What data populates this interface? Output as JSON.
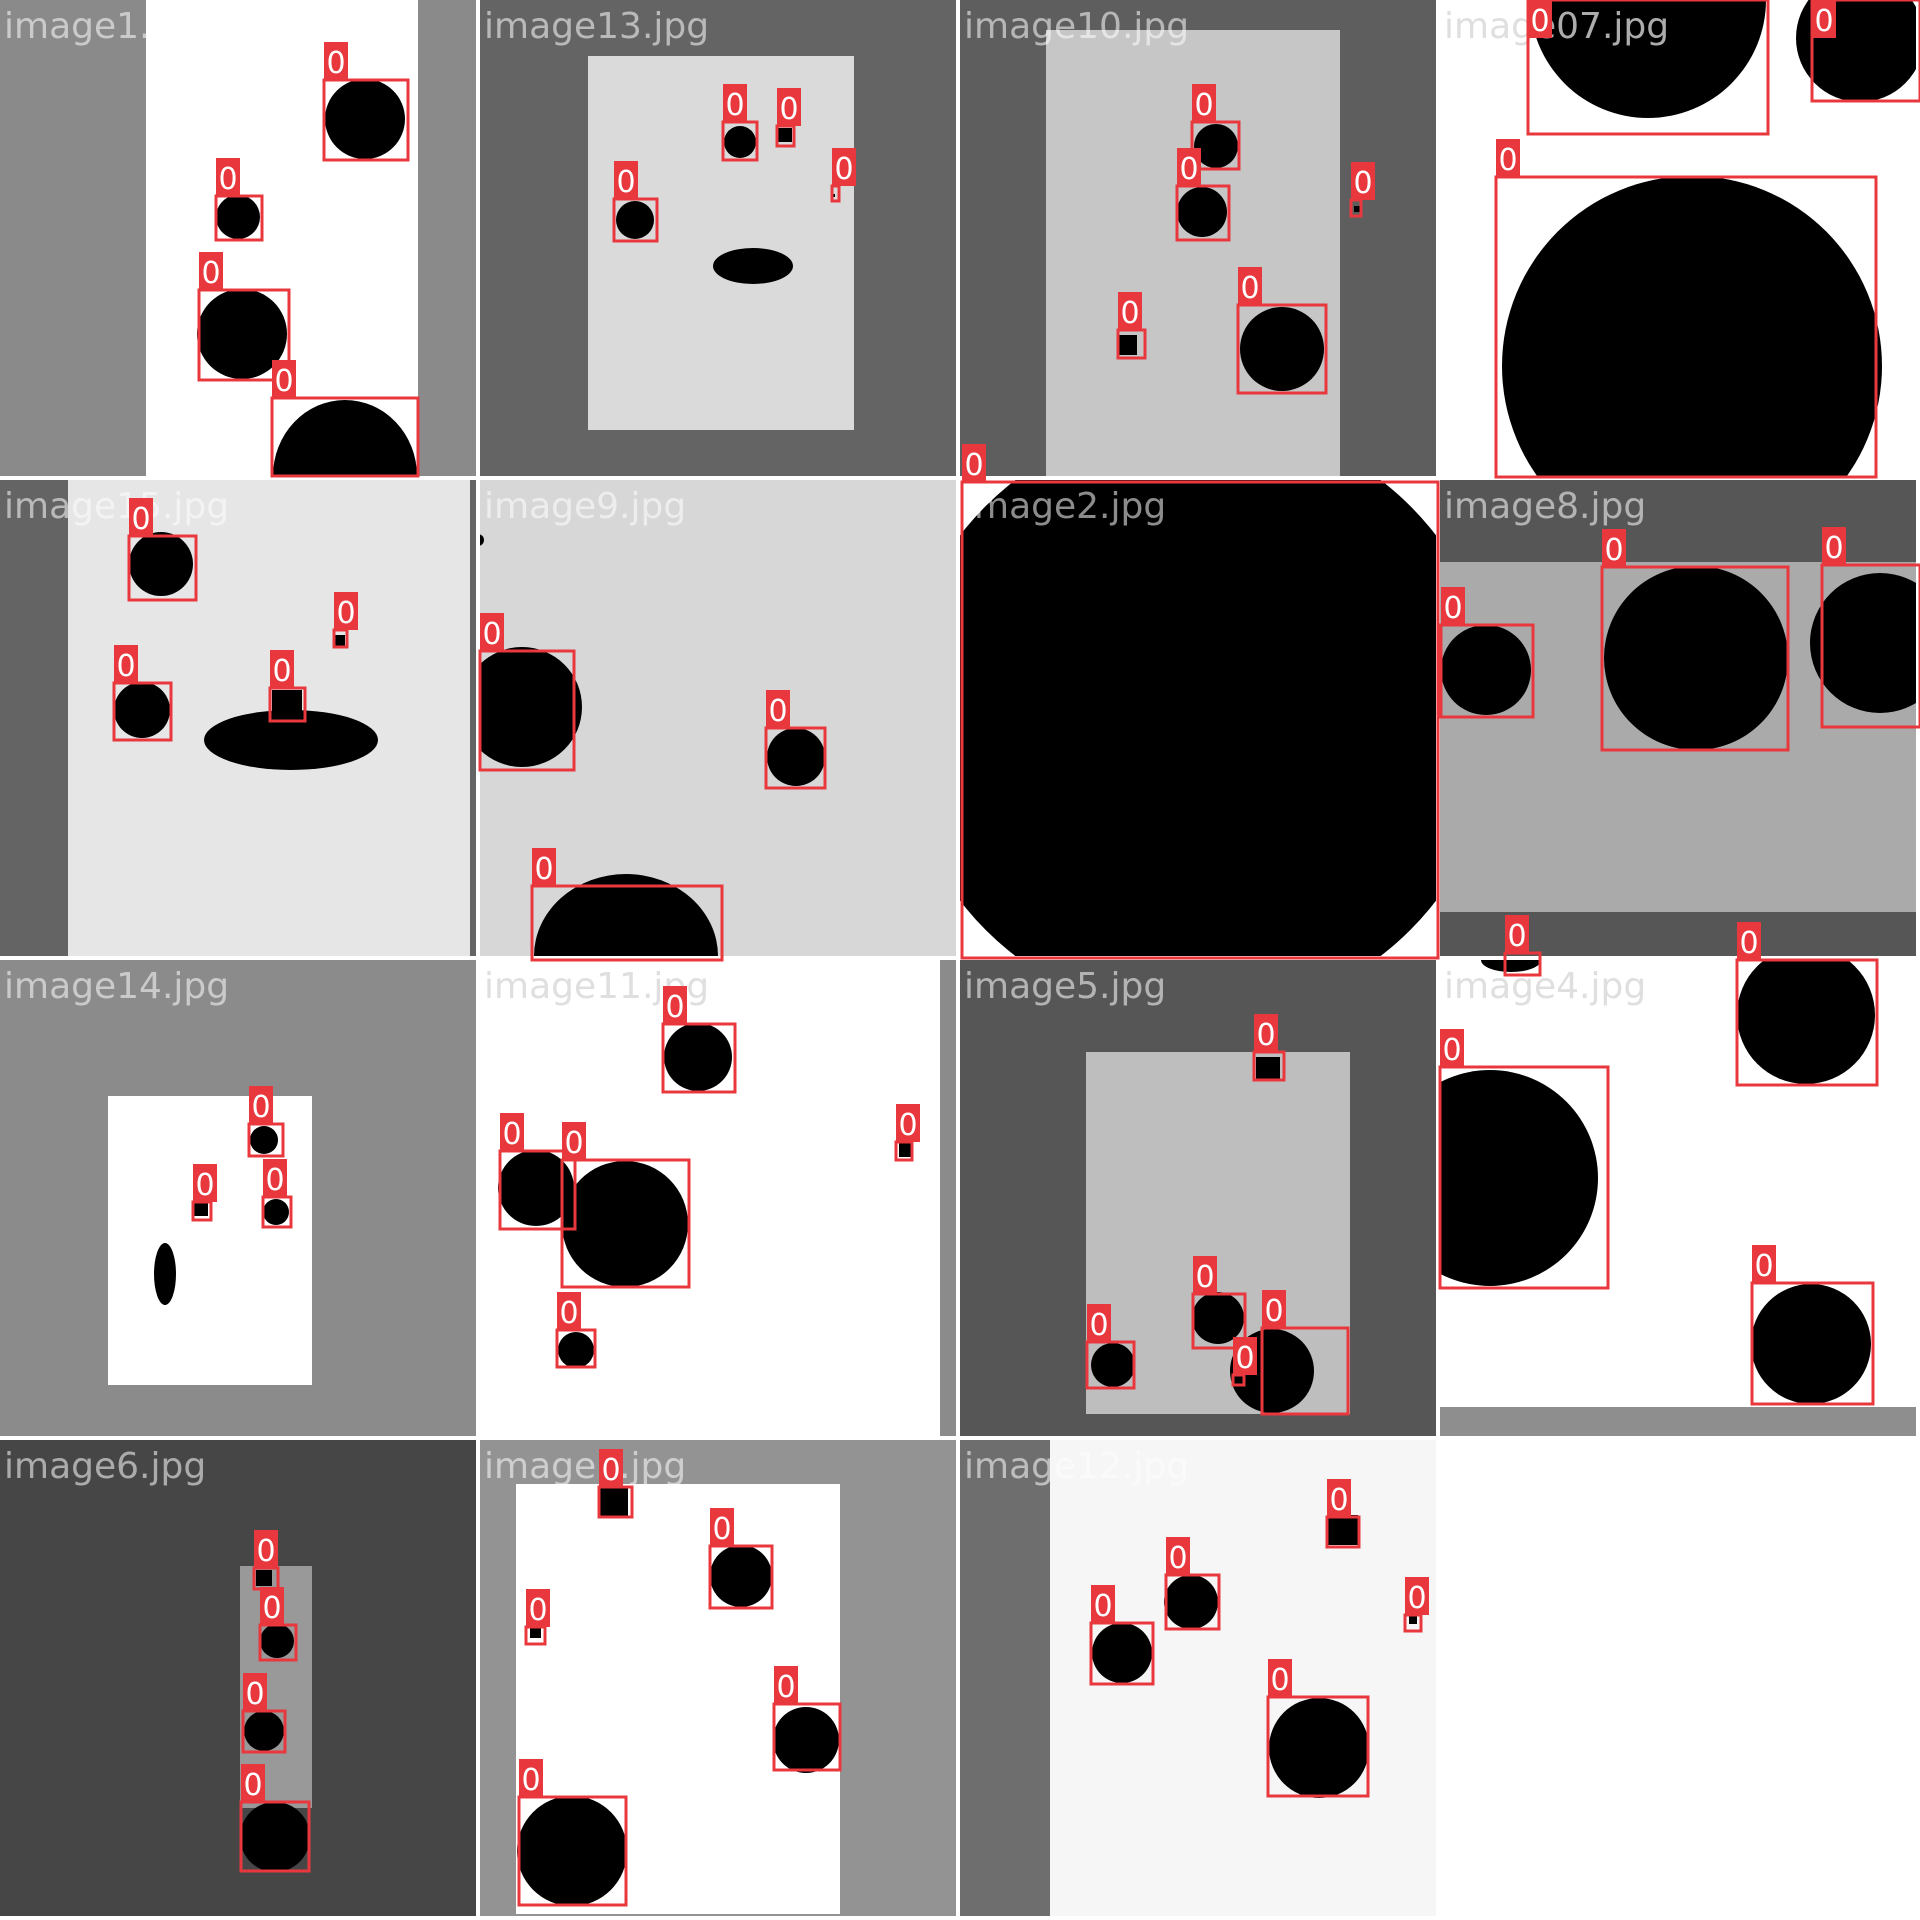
{
  "mosaic": {
    "tiles": [
      {
        "name": "image1.jpg"
      },
      {
        "name": "image13.jpg"
      },
      {
        "name": "image10.jpg"
      },
      {
        "name": "image07.jpg"
      },
      {
        "name": "image15.jpg"
      },
      {
        "name": "image9.jpg"
      },
      {
        "name": "image2.jpg"
      },
      {
        "name": "image8.jpg"
      },
      {
        "name": "image14.jpg"
      },
      {
        "name": "image11.jpg"
      },
      {
        "name": "image5.jpg"
      },
      {
        "name": "image4.jpg"
      },
      {
        "name": "image6.jpg"
      },
      {
        "name": "image3.jpg"
      },
      {
        "name": "image12.jpg"
      }
    ],
    "detection_label": "0",
    "colors": {
      "box": "#e8383d",
      "label_bg": "#e8383d",
      "label_text": "#ffffff",
      "object": "#000000"
    }
  }
}
